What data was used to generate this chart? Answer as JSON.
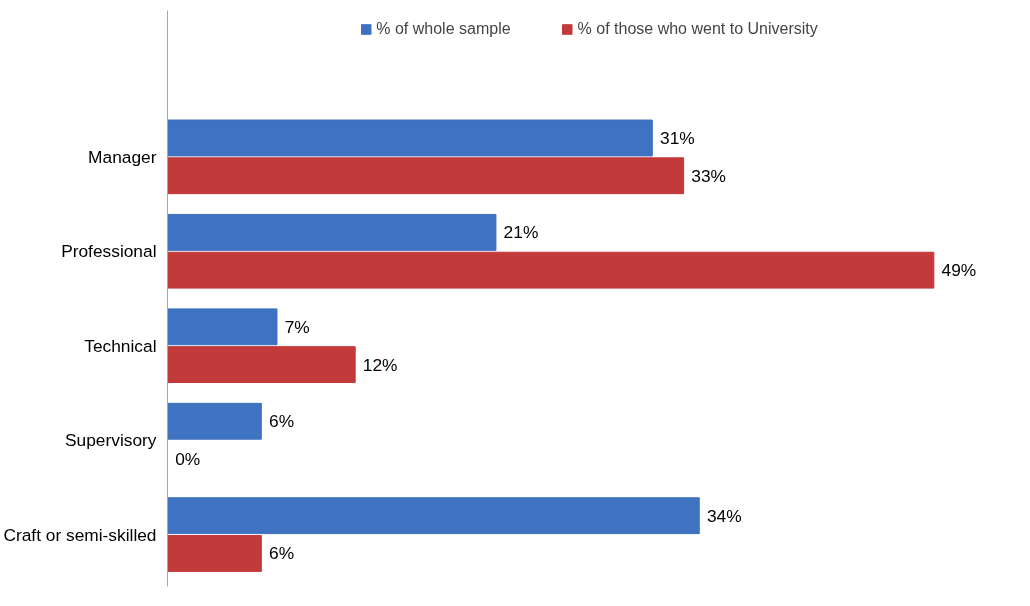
{
  "chart_data": {
    "type": "bar",
    "orientation": "horizontal",
    "legend": "top",
    "categories": [
      "Manager",
      "Professional",
      "Technical",
      "Supervisory",
      "Craft or semi-skilled"
    ],
    "series": [
      {
        "name": "% of whole sample",
        "color": "#3f72c0",
        "values": [
          31,
          21,
          7,
          6,
          34
        ],
        "value_labels": [
          "31%",
          "21%",
          "7%",
          "6%",
          "34%"
        ]
      },
      {
        "name": "% of those who went to University",
        "color": "#c23a3a",
        "values": [
          33,
          49,
          12,
          0,
          6
        ],
        "value_labels": [
          "33%",
          "49%",
          "12%",
          "0%",
          "6%"
        ]
      }
    ]
  }
}
